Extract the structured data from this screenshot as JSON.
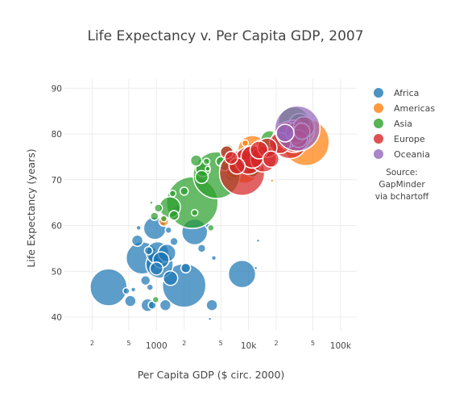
{
  "chart_data": {
    "type": "scatter",
    "title": "Life Expectancy v. Per Capita GDP, 2007",
    "xlabel": "Per Capita GDP ($ circ. 2000)",
    "ylabel": "Life Expectancy (years)",
    "x_scale": "log",
    "xlim": [
      100,
      150000
    ],
    "ylim": [
      37,
      92
    ],
    "grid": true,
    "legend_position": "right",
    "x_ticks_major": [
      {
        "value": 1000,
        "label": "1000"
      },
      {
        "value": 10000,
        "label": "10k"
      },
      {
        "value": 100000,
        "label": "100k"
      }
    ],
    "x_ticks_minor": [
      {
        "value": 200,
        "label": "2"
      },
      {
        "value": 500,
        "label": "5"
      },
      {
        "value": 2000,
        "label": "2"
      },
      {
        "value": 5000,
        "label": "5"
      },
      {
        "value": 20000,
        "label": "2"
      },
      {
        "value": 50000,
        "label": "5"
      }
    ],
    "y_ticks": [
      {
        "value": 40,
        "label": "40"
      },
      {
        "value": 50,
        "label": "50"
      },
      {
        "value": 60,
        "label": "60"
      },
      {
        "value": 70,
        "label": "70"
      },
      {
        "value": 80,
        "label": "80"
      },
      {
        "value": 90,
        "label": "90"
      }
    ],
    "annotation": [
      "Source:",
      "GapMinder",
      "via bchartoff"
    ],
    "series": [
      {
        "name": "Africa",
        "color": "#1f77b4",
        "points": [
          {
            "x": 302,
            "y": 46.5,
            "size": 23
          },
          {
            "x": 470,
            "y": 45.7,
            "size": 4
          },
          {
            "x": 520,
            "y": 43.5,
            "size": 7
          },
          {
            "x": 560,
            "y": 46.0,
            "size": 3
          },
          {
            "x": 620,
            "y": 56.7,
            "size": 7
          },
          {
            "x": 640,
            "y": 59.5,
            "size": 3
          },
          {
            "x": 700,
            "y": 52.9,
            "size": 20
          },
          {
            "x": 760,
            "y": 48.0,
            "size": 6
          },
          {
            "x": 800,
            "y": 42.6,
            "size": 8
          },
          {
            "x": 820,
            "y": 54.5,
            "size": 5
          },
          {
            "x": 850,
            "y": 46.5,
            "size": 4
          },
          {
            "x": 900,
            "y": 42.6,
            "size": 5
          },
          {
            "x": 960,
            "y": 59.4,
            "size": 14
          },
          {
            "x": 1000,
            "y": 50.6,
            "size": 8
          },
          {
            "x": 1030,
            "y": 54.0,
            "size": 14
          },
          {
            "x": 1080,
            "y": 51.5,
            "size": 17
          },
          {
            "x": 1120,
            "y": 52.5,
            "size": 10
          },
          {
            "x": 1180,
            "y": 60.5,
            "size": 3
          },
          {
            "x": 1250,
            "y": 42.6,
            "size": 7
          },
          {
            "x": 1300,
            "y": 54.0,
            "size": 11
          },
          {
            "x": 1350,
            "y": 59.0,
            "size": 4
          },
          {
            "x": 1420,
            "y": 48.5,
            "size": 9
          },
          {
            "x": 1550,
            "y": 56.5,
            "size": 5
          },
          {
            "x": 1700,
            "y": 63.5,
            "size": 5
          },
          {
            "x": 2000,
            "y": 46.9,
            "size": 27
          },
          {
            "x": 2080,
            "y": 50.7,
            "size": 6
          },
          {
            "x": 2600,
            "y": 58.6,
            "size": 16
          },
          {
            "x": 3100,
            "y": 55.0,
            "size": 5
          },
          {
            "x": 3600,
            "y": 60.0,
            "size": 3
          },
          {
            "x": 3800,
            "y": 39.6,
            "size": 2
          },
          {
            "x": 4000,
            "y": 42.6,
            "size": 7
          },
          {
            "x": 4200,
            "y": 52.9,
            "size": 3
          },
          {
            "x": 6500,
            "y": 71.0,
            "size": 7
          },
          {
            "x": 8500,
            "y": 49.4,
            "size": 17
          },
          {
            "x": 12000,
            "y": 50.7,
            "size": 2
          },
          {
            "x": 12700,
            "y": 56.7,
            "size": 2
          }
        ]
      },
      {
        "name": "Americas",
        "color": "#ff7f0e",
        "points": [
          {
            "x": 1200,
            "y": 60.9,
            "size": 6
          },
          {
            "x": 6000,
            "y": 73.0,
            "size": 10
          },
          {
            "x": 7000,
            "y": 72.0,
            "size": 10
          },
          {
            "x": 8000,
            "y": 74.5,
            "size": 6
          },
          {
            "x": 9000,
            "y": 72.4,
            "size": 18
          },
          {
            "x": 9200,
            "y": 78.0,
            "size": 4
          },
          {
            "x": 11000,
            "y": 76.5,
            "size": 18
          },
          {
            "x": 12500,
            "y": 75.3,
            "size": 12
          },
          {
            "x": 13000,
            "y": 77.9,
            "size": 4
          },
          {
            "x": 18000,
            "y": 69.8,
            "size": 2
          },
          {
            "x": 36000,
            "y": 80.6,
            "size": 18
          },
          {
            "x": 42000,
            "y": 78.2,
            "size": 29
          }
        ]
      },
      {
        "name": "Asia",
        "color": "#2ca02c",
        "points": [
          {
            "x": 880,
            "y": 65.0,
            "size": 2
          },
          {
            "x": 950,
            "y": 62.0,
            "size": 5
          },
          {
            "x": 980,
            "y": 43.8,
            "size": 4
          },
          {
            "x": 1050,
            "y": 63.8,
            "size": 5
          },
          {
            "x": 1200,
            "y": 61.5,
            "size": 4
          },
          {
            "x": 1400,
            "y": 64.0,
            "size": 13
          },
          {
            "x": 1500,
            "y": 67.0,
            "size": 4
          },
          {
            "x": 1550,
            "y": 62.2,
            "size": 6
          },
          {
            "x": 2000,
            "y": 67.5,
            "size": 5
          },
          {
            "x": 2450,
            "y": 65.0,
            "size": 32
          },
          {
            "x": 2600,
            "y": 62.8,
            "size": 4
          },
          {
            "x": 2700,
            "y": 74.2,
            "size": 7
          },
          {
            "x": 3100,
            "y": 70.6,
            "size": 8
          },
          {
            "x": 3200,
            "y": 72.3,
            "size": 9
          },
          {
            "x": 3500,
            "y": 74.0,
            "size": 4
          },
          {
            "x": 3600,
            "y": 72.4,
            "size": 3
          },
          {
            "x": 3900,
            "y": 59.5,
            "size": 4
          },
          {
            "x": 4500,
            "y": 71.0,
            "size": 29
          },
          {
            "x": 5000,
            "y": 74.0,
            "size": 6
          },
          {
            "x": 5500,
            "y": 73.0,
            "size": 6
          },
          {
            "x": 5900,
            "y": 76.3,
            "size": 8
          },
          {
            "x": 9000,
            "y": 73.4,
            "size": 6
          },
          {
            "x": 11000,
            "y": 72.0,
            "size": 8
          },
          {
            "x": 17000,
            "y": 78.8,
            "size": 11
          },
          {
            "x": 25000,
            "y": 79.6,
            "size": 6
          },
          {
            "x": 28000,
            "y": 80.0,
            "size": 16
          },
          {
            "x": 31000,
            "y": 82.6,
            "size": 19
          },
          {
            "x": 36000,
            "y": 82.2,
            "size": 13
          },
          {
            "x": 40000,
            "y": 80.0,
            "size": 6
          }
        ]
      },
      {
        "name": "Europe",
        "color": "#d62728",
        "points": [
          {
            "x": 5800,
            "y": 76.0,
            "size": 8
          },
          {
            "x": 6500,
            "y": 74.8,
            "size": 8
          },
          {
            "x": 7500,
            "y": 73.0,
            "size": 10
          },
          {
            "x": 8500,
            "y": 71.5,
            "size": 28
          },
          {
            "x": 10000,
            "y": 74.2,
            "size": 17
          },
          {
            "x": 11000,
            "y": 75.0,
            "size": 14
          },
          {
            "x": 13000,
            "y": 76.5,
            "size": 11
          },
          {
            "x": 14500,
            "y": 74.5,
            "size": 16
          },
          {
            "x": 16000,
            "y": 77.0,
            "size": 12
          },
          {
            "x": 17500,
            "y": 74.5,
            "size": 10
          },
          {
            "x": 22000,
            "y": 78.0,
            "size": 13
          },
          {
            "x": 26000,
            "y": 79.8,
            "size": 16
          },
          {
            "x": 28000,
            "y": 78.5,
            "size": 22
          },
          {
            "x": 31000,
            "y": 79.5,
            "size": 20
          },
          {
            "x": 33000,
            "y": 80.3,
            "size": 13
          },
          {
            "x": 35000,
            "y": 79.0,
            "size": 11
          },
          {
            "x": 38000,
            "y": 80.6,
            "size": 10
          },
          {
            "x": 40000,
            "y": 81.5,
            "size": 13
          }
        ]
      },
      {
        "name": "Oceania",
        "color": "#9467bd",
        "points": [
          {
            "x": 25000,
            "y": 80.2,
            "size": 11
          },
          {
            "x": 34000,
            "y": 81.2,
            "size": 28
          }
        ]
      }
    ]
  }
}
